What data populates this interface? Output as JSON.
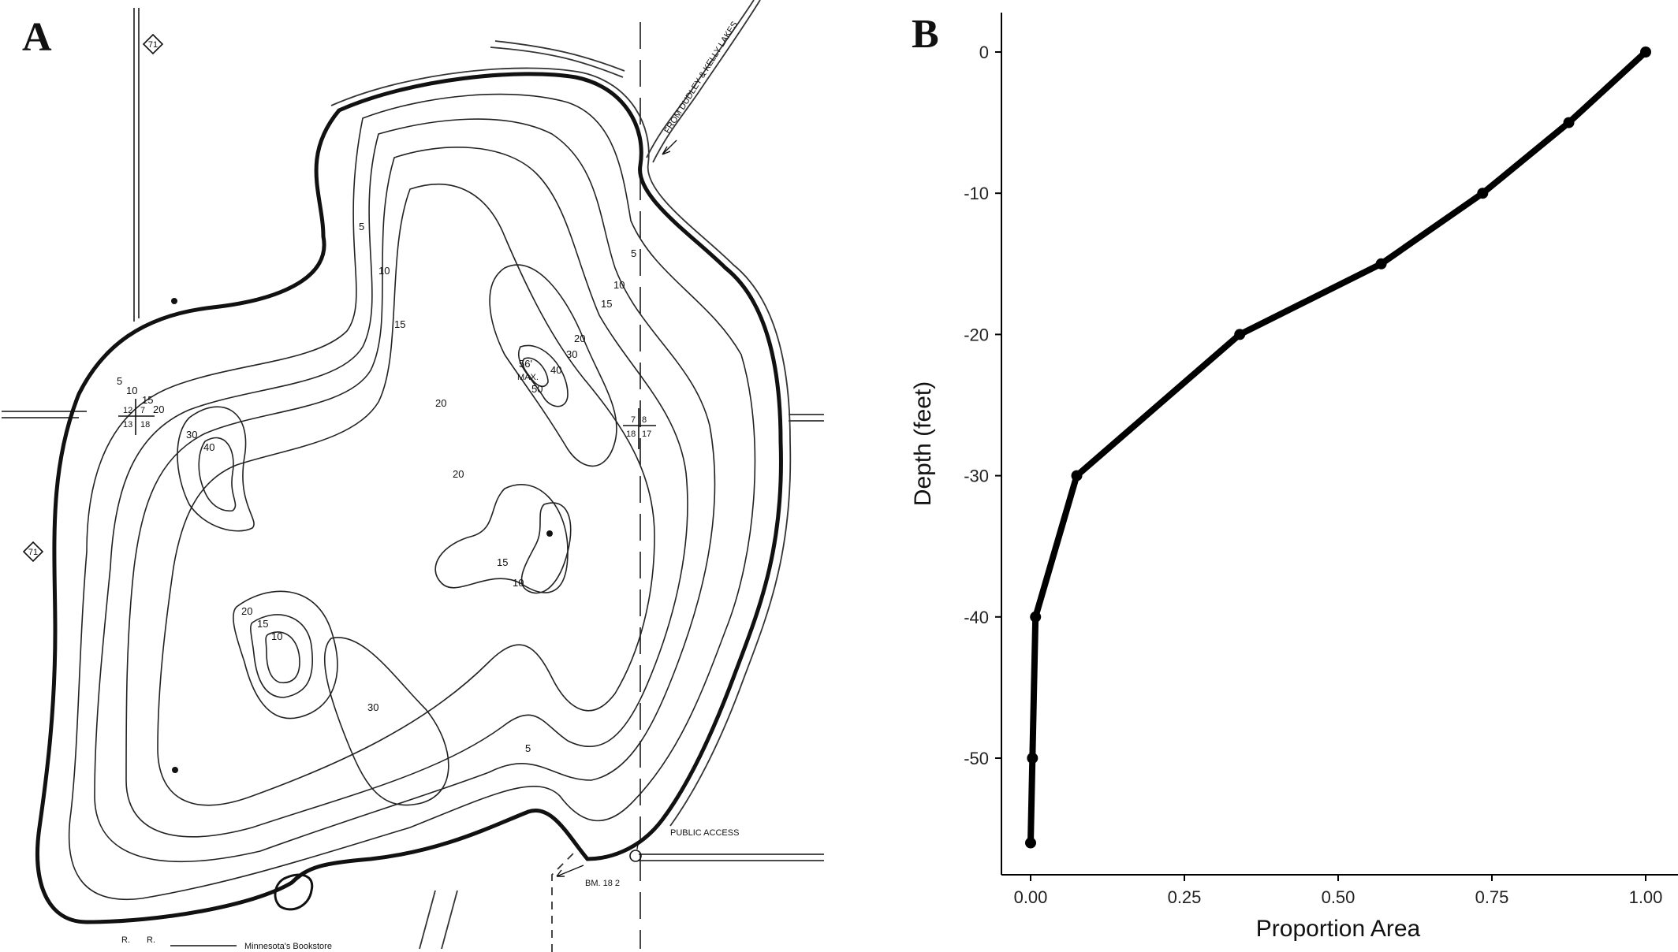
{
  "panels": {
    "a_label": "A",
    "b_label": "B"
  },
  "map": {
    "contour_labels": [
      "5",
      "10",
      "15",
      "20",
      "30",
      "40",
      "50"
    ],
    "max_depth_label": "56'",
    "max_label": "MAX.",
    "inflow_label": "FROM DUDLEY & KELLY LAKES",
    "public_access_label": "PUBLIC ACCESS",
    "benchmark_label": "BM. 18 2",
    "highway_number": "71",
    "section_labels_left": [
      "12",
      "7",
      "13",
      "18"
    ],
    "section_labels_right": [
      "7",
      "8",
      "18",
      "17"
    ],
    "range_label": "R.",
    "credit_text": "Minnesota's Bookstore"
  },
  "chart_data": {
    "type": "line",
    "title": "",
    "xlabel": "Proportion Area",
    "ylabel": "Depth (feet)",
    "xlim": [
      0,
      1
    ],
    "ylim": [
      -58,
      3
    ],
    "x_ticks": [
      0.0,
      0.25,
      0.5,
      0.75,
      1.0
    ],
    "x_tick_labels": [
      "0.00",
      "0.25",
      "0.50",
      "0.75",
      "1.00"
    ],
    "y_ticks": [
      0,
      -10,
      -20,
      -30,
      -40,
      -50
    ],
    "y_tick_labels": [
      "0",
      "-10",
      "-20",
      "-30",
      "-40",
      "-50"
    ],
    "grid": false,
    "series": [
      {
        "x": [
          1.0,
          0.875,
          0.735,
          0.57,
          0.34,
          0.075,
          0.008,
          0.003,
          0.0
        ],
        "y": [
          0,
          -5,
          -10,
          -15,
          -20,
          -30,
          -40,
          -50,
          -56
        ]
      }
    ]
  }
}
